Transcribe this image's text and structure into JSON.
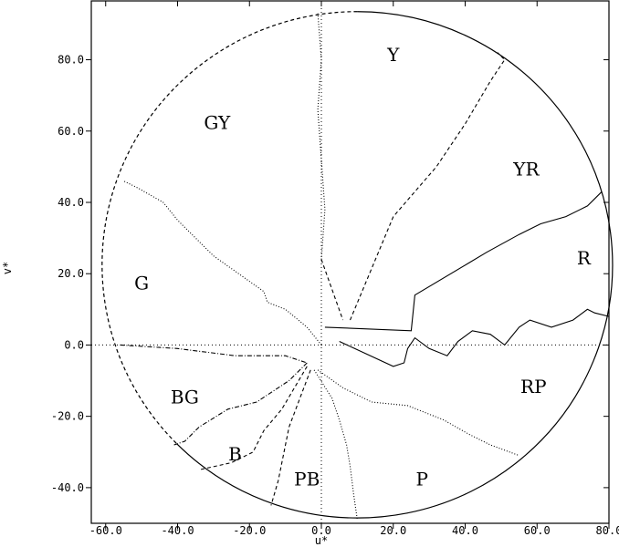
{
  "chart_data": {
    "type": "line",
    "title": "",
    "xlabel": "u*",
    "ylabel": "v*",
    "xlim": [
      -64,
      80
    ],
    "ylim": [
      -50,
      96.5
    ],
    "x_ticks": [
      -60,
      -40,
      -20,
      0,
      20,
      40,
      60,
      80
    ],
    "y_ticks": [
      -40,
      -20,
      0,
      20,
      40,
      60,
      80
    ],
    "x_tick_labels": [
      "-60.0",
      "-40.0",
      "-20.0",
      "0.0",
      "20.0",
      "40.0",
      "60.0",
      "80.0"
    ],
    "y_tick_labels": [
      "-40.0",
      "-20.0",
      "0.0",
      "20.0",
      "40.0",
      "60.0",
      "80.0"
    ],
    "grid": false,
    "reference_lines": {
      "horizontal_y": 0,
      "vertical_x": 0,
      "style": "dotted"
    },
    "gamut_circle": {
      "center": [
        10,
        22.5
      ],
      "radius": 71
    },
    "region_labels": [
      {
        "text": "Y",
        "x": 20,
        "y": 81
      },
      {
        "text": "GY",
        "x": -29,
        "y": 62
      },
      {
        "text": "YR",
        "x": 57,
        "y": 49
      },
      {
        "text": "R",
        "x": 73,
        "y": 24
      },
      {
        "text": "G",
        "x": -50,
        "y": 17
      },
      {
        "text": "RP",
        "x": 59,
        "y": -12
      },
      {
        "text": "BG",
        "x": -38,
        "y": -15
      },
      {
        "text": "B",
        "x": -24,
        "y": -31
      },
      {
        "text": "PB",
        "x": -4,
        "y": -38
      },
      {
        "text": "P",
        "x": 28,
        "y": -38
      }
    ],
    "series": [
      {
        "style": "dotted",
        "points": [
          [
            0,
            0
          ],
          [
            -4,
            5
          ],
          [
            -10,
            10
          ],
          [
            -15,
            12
          ],
          [
            -16,
            15
          ],
          [
            -30,
            25
          ],
          [
            -35,
            30
          ],
          [
            -40,
            35
          ],
          [
            -44,
            40
          ],
          [
            -51,
            44
          ],
          [
            -55,
            46
          ]
        ]
      },
      {
        "style": "dotted",
        "points": [
          [
            0,
            24
          ],
          [
            1,
            38
          ],
          [
            0,
            52
          ],
          [
            -1,
            66
          ],
          [
            0,
            80
          ],
          [
            -1,
            93
          ]
        ]
      },
      {
        "style": "dashed",
        "points": [
          [
            0,
            24
          ],
          [
            6,
            7
          ]
        ]
      },
      {
        "style": "dashed",
        "points": [
          [
            8,
            7
          ],
          [
            20,
            36
          ],
          [
            32,
            50
          ],
          [
            40,
            62
          ],
          [
            47,
            74
          ],
          [
            51,
            80
          ],
          [
            49,
            82
          ]
        ]
      },
      {
        "style": "dash-dot",
        "points": [
          [
            -56,
            0
          ],
          [
            -40,
            -1
          ],
          [
            -24,
            -3
          ],
          [
            -10,
            -3
          ],
          [
            -4,
            -5
          ]
        ]
      },
      {
        "style": "dash-dot",
        "points": [
          [
            -4,
            -5
          ],
          [
            -9,
            -10
          ],
          [
            -18,
            -16
          ],
          [
            -26,
            -18
          ],
          [
            -34,
            -23
          ],
          [
            -38,
            -27
          ],
          [
            -41,
            -28
          ]
        ]
      },
      {
        "style": "dashed",
        "points": [
          [
            -4,
            -6
          ],
          [
            -11,
            -18
          ],
          [
            -16,
            -24
          ],
          [
            -19,
            -30
          ],
          [
            -25,
            -33
          ],
          [
            -34,
            -35
          ]
        ]
      },
      {
        "style": "dashed",
        "points": [
          [
            -3,
            -7
          ],
          [
            -9,
            -23
          ],
          [
            -12,
            -38
          ],
          [
            -14,
            -45
          ]
        ]
      },
      {
        "style": "dotted",
        "points": [
          [
            -2,
            -7
          ],
          [
            3,
            -15
          ],
          [
            5,
            -21
          ],
          [
            7,
            -28
          ],
          [
            8,
            -34
          ],
          [
            9,
            -42
          ],
          [
            10,
            -49
          ]
        ]
      },
      {
        "style": "dotted",
        "points": [
          [
            -1,
            -7
          ],
          [
            6,
            -12
          ],
          [
            14,
            -16
          ],
          [
            24,
            -17
          ],
          [
            34,
            -21
          ],
          [
            41,
            -25
          ],
          [
            47,
            -28
          ],
          [
            55,
            -31
          ]
        ]
      },
      {
        "style": "solid",
        "points": [
          [
            1,
            5
          ],
          [
            25,
            4
          ],
          [
            26,
            14
          ],
          [
            41,
            23
          ],
          [
            46,
            26
          ],
          [
            55,
            31
          ],
          [
            61,
            34
          ],
          [
            68,
            36
          ],
          [
            74,
            39
          ],
          [
            78,
            43
          ]
        ]
      },
      {
        "style": "solid",
        "points": [
          [
            5,
            1
          ],
          [
            20,
            -6
          ],
          [
            23,
            -5
          ],
          [
            24,
            -1
          ],
          [
            26,
            2
          ],
          [
            30,
            -1
          ],
          [
            35,
            -3
          ],
          [
            38,
            1
          ],
          [
            42,
            4
          ],
          [
            47,
            3
          ],
          [
            51,
            0
          ],
          [
            55,
            5
          ],
          [
            58,
            7
          ],
          [
            64,
            5
          ],
          [
            70,
            7
          ],
          [
            74,
            10
          ],
          [
            76,
            9
          ],
          [
            80,
            8
          ]
        ]
      }
    ]
  }
}
